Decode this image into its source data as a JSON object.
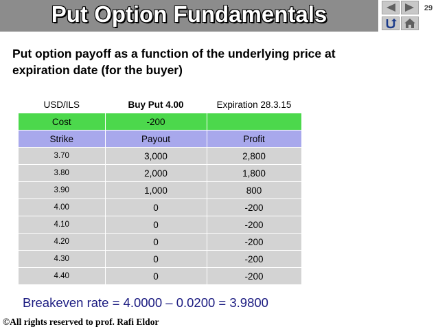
{
  "slide": {
    "title": "Put Option Fundamentals",
    "number": "29",
    "subtitle_line1": "Put option payoff as a function of the underlying price at",
    "subtitle_line2": "expiration date (for the buyer)"
  },
  "nav": {
    "prev_icon": "triangle-left-icon",
    "next_icon": "triangle-right-icon",
    "return_icon": "return-arrow-icon",
    "home_icon": "home-icon"
  },
  "table": {
    "header": {
      "pair": "USD/ILS",
      "position": "Buy Put 4.00",
      "expiration": "Expiration 28.3.15"
    },
    "cost": {
      "label": "Cost",
      "value": "-200",
      "extra": ""
    },
    "columns": {
      "strike": "Strike",
      "payout": "Payout",
      "profit": "Profit"
    },
    "rows": [
      {
        "strike": "3.70",
        "payout": "3,000",
        "profit": "2,800"
      },
      {
        "strike": "3.80",
        "payout": "2,000",
        "profit": "1,800"
      },
      {
        "strike": "3.90",
        "payout": "1,000",
        "profit": "800"
      },
      {
        "strike": "4.00",
        "payout": "0",
        "profit": "-200"
      },
      {
        "strike": "4.10",
        "payout": "0",
        "profit": "-200"
      },
      {
        "strike": "4.20",
        "payout": "0",
        "profit": "-200"
      },
      {
        "strike": "4.30",
        "payout": "0",
        "profit": "-200"
      },
      {
        "strike": "4.40",
        "payout": "0",
        "profit": "-200"
      }
    ]
  },
  "breakeven": "Breakeven rate = 4.0000 – 0.0200 = 3.9800",
  "copyright": "©All rights reserved to prof. Rafi Eldor",
  "colors": {
    "title_bar": "#8c8c8c",
    "cost_row": "#4cd84c",
    "columns_row": "#a8a8ec",
    "data_row": "#d3d3d3",
    "breakeven_text": "#1a1a80"
  }
}
